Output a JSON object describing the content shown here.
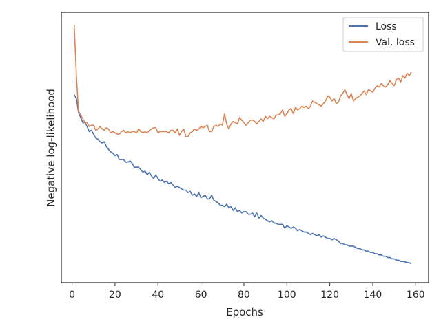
{
  "chart_data": {
    "type": "line",
    "xlabel": "Epochs",
    "ylabel": "Negative log-likelihood",
    "xlim": [
      -5,
      166
    ],
    "ylim": [
      0,
      1
    ],
    "x_ticks": [
      0,
      20,
      40,
      60,
      80,
      100,
      120,
      140,
      160
    ],
    "y_tick_labels": "none",
    "grid": false,
    "legend_position": "top-right",
    "y_values_note_units": "relative (no y tick labels shown)",
    "series": [
      {
        "name": "Loss",
        "color": "#4c72b0",
        "x": [
          1,
          2,
          3,
          4,
          5,
          6,
          7,
          8,
          9,
          10,
          11,
          12,
          13,
          14,
          15,
          16,
          17,
          18,
          19,
          20,
          21,
          22,
          23,
          24,
          25,
          26,
          27,
          28,
          29,
          30,
          31,
          32,
          33,
          34,
          35,
          36,
          37,
          38,
          39,
          40,
          41,
          42,
          43,
          44,
          45,
          46,
          47,
          48,
          49,
          50,
          51,
          52,
          53,
          54,
          55,
          56,
          57,
          58,
          59,
          60,
          61,
          62,
          63,
          64,
          65,
          66,
          67,
          68,
          69,
          70,
          71,
          72,
          73,
          74,
          75,
          76,
          77,
          78,
          79,
          80,
          81,
          82,
          83,
          84,
          85,
          86,
          87,
          88,
          89,
          90,
          91,
          92,
          93,
          94,
          95,
          96,
          97,
          98,
          99,
          100,
          101,
          102,
          103,
          104,
          105,
          106,
          107,
          108,
          109,
          110,
          111,
          112,
          113,
          114,
          115,
          116,
          117,
          118,
          119,
          120,
          121,
          122,
          123,
          124,
          125,
          126,
          127,
          128,
          129,
          130,
          131,
          132,
          133,
          134,
          135,
          136,
          137,
          138,
          139,
          140,
          141,
          142,
          143,
          144,
          145,
          146,
          147,
          148,
          149,
          150,
          151,
          152,
          153,
          154,
          155,
          156,
          157,
          158
        ],
        "values": [
          0.725,
          0.71,
          0.655,
          0.635,
          0.615,
          0.615,
          0.6,
          0.58,
          0.585,
          0.57,
          0.555,
          0.55,
          0.54,
          0.535,
          0.54,
          0.52,
          0.51,
          0.5,
          0.495,
          0.485,
          0.49,
          0.47,
          0.47,
          0.47,
          0.46,
          0.46,
          0.465,
          0.455,
          0.44,
          0.44,
          0.44,
          0.43,
          0.42,
          0.425,
          0.41,
          0.42,
          0.405,
          0.395,
          0.41,
          0.395,
          0.385,
          0.39,
          0.38,
          0.385,
          0.375,
          0.38,
          0.37,
          0.36,
          0.365,
          0.36,
          0.355,
          0.35,
          0.35,
          0.34,
          0.345,
          0.33,
          0.335,
          0.325,
          0.34,
          0.32,
          0.325,
          0.33,
          0.315,
          0.315,
          0.33,
          0.31,
          0.305,
          0.3,
          0.29,
          0.29,
          0.285,
          0.295,
          0.28,
          0.285,
          0.27,
          0.28,
          0.265,
          0.27,
          0.26,
          0.265,
          0.265,
          0.255,
          0.255,
          0.26,
          0.245,
          0.26,
          0.24,
          0.25,
          0.24,
          0.235,
          0.23,
          0.225,
          0.23,
          0.22,
          0.22,
          0.215,
          0.215,
          0.215,
          0.2,
          0.21,
          0.205,
          0.2,
          0.205,
          0.2,
          0.19,
          0.195,
          0.19,
          0.185,
          0.185,
          0.18,
          0.175,
          0.18,
          0.175,
          0.17,
          0.175,
          0.165,
          0.17,
          0.165,
          0.16,
          0.16,
          0.155,
          0.16,
          0.155,
          0.15,
          0.14,
          0.14,
          0.135,
          0.135,
          0.13,
          0.13,
          0.13,
          0.125,
          0.12,
          0.12,
          0.115,
          0.115,
          0.11,
          0.11,
          0.105,
          0.105,
          0.1,
          0.1,
          0.095,
          0.095,
          0.09,
          0.09,
          0.085,
          0.085,
          0.08,
          0.08,
          0.075,
          0.075,
          0.07,
          0.07,
          0.068,
          0.066,
          0.064,
          0.062
        ]
      },
      {
        "name": "Val. loss",
        "color": "#dd8452",
        "x": [
          1,
          2,
          3,
          4,
          5,
          6,
          7,
          8,
          9,
          10,
          11,
          12,
          13,
          14,
          15,
          16,
          17,
          18,
          19,
          20,
          21,
          22,
          23,
          24,
          25,
          26,
          27,
          28,
          29,
          30,
          31,
          32,
          33,
          34,
          35,
          36,
          37,
          38,
          39,
          40,
          41,
          42,
          43,
          44,
          45,
          46,
          47,
          48,
          49,
          50,
          51,
          52,
          53,
          54,
          55,
          56,
          57,
          58,
          59,
          60,
          61,
          62,
          63,
          64,
          65,
          66,
          67,
          68,
          69,
          70,
          71,
          72,
          73,
          74,
          75,
          76,
          77,
          78,
          79,
          80,
          81,
          82,
          83,
          84,
          85,
          86,
          87,
          88,
          89,
          90,
          91,
          92,
          93,
          94,
          95,
          96,
          97,
          98,
          99,
          100,
          101,
          102,
          103,
          104,
          105,
          106,
          107,
          108,
          109,
          110,
          111,
          112,
          113,
          114,
          115,
          116,
          117,
          118,
          119,
          120,
          121,
          122,
          123,
          124,
          125,
          126,
          127,
          128,
          129,
          130,
          131,
          132,
          133,
          134,
          135,
          136,
          137,
          138,
          139,
          140,
          141,
          142,
          143,
          144,
          145,
          146,
          147,
          148,
          149,
          150,
          151,
          152,
          153,
          154,
          155,
          156,
          157,
          158
        ],
        "values": [
          1.0,
          0.8,
          0.66,
          0.645,
          0.63,
          0.615,
          0.615,
          0.6,
          0.605,
          0.605,
          0.585,
          0.59,
          0.6,
          0.59,
          0.585,
          0.595,
          0.59,
          0.575,
          0.58,
          0.575,
          0.57,
          0.57,
          0.58,
          0.585,
          0.575,
          0.58,
          0.575,
          0.58,
          0.58,
          0.575,
          0.59,
          0.58,
          0.575,
          0.58,
          0.575,
          0.585,
          0.59,
          0.595,
          0.595,
          0.575,
          0.58,
          0.58,
          0.58,
          0.58,
          0.575,
          0.585,
          0.585,
          0.575,
          0.59,
          0.565,
          0.58,
          0.59,
          0.56,
          0.56,
          0.575,
          0.58,
          0.59,
          0.585,
          0.59,
          0.6,
          0.595,
          0.6,
          0.605,
          0.58,
          0.58,
          0.6,
          0.605,
          0.6,
          0.61,
          0.605,
          0.65,
          0.61,
          0.59,
          0.61,
          0.62,
          0.615,
          0.61,
          0.635,
          0.625,
          0.615,
          0.605,
          0.615,
          0.625,
          0.625,
          0.62,
          0.61,
          0.62,
          0.63,
          0.62,
          0.64,
          0.63,
          0.64,
          0.635,
          0.63,
          0.645,
          0.645,
          0.65,
          0.665,
          0.64,
          0.65,
          0.665,
          0.67,
          0.65,
          0.675,
          0.665,
          0.67,
          0.68,
          0.675,
          0.68,
          0.67,
          0.68,
          0.7,
          0.695,
          0.69,
          0.685,
          0.68,
          0.69,
          0.7,
          0.72,
          0.715,
          0.7,
          0.71,
          0.69,
          0.695,
          0.72,
          0.73,
          0.745,
          0.725,
          0.71,
          0.73,
          0.7,
          0.71,
          0.715,
          0.72,
          0.73,
          0.74,
          0.725,
          0.745,
          0.74,
          0.735,
          0.75,
          0.76,
          0.755,
          0.77,
          0.76,
          0.755,
          0.765,
          0.78,
          0.77,
          0.76,
          0.785,
          0.79,
          0.775,
          0.8,
          0.79,
          0.81,
          0.8,
          0.815
        ]
      }
    ]
  }
}
